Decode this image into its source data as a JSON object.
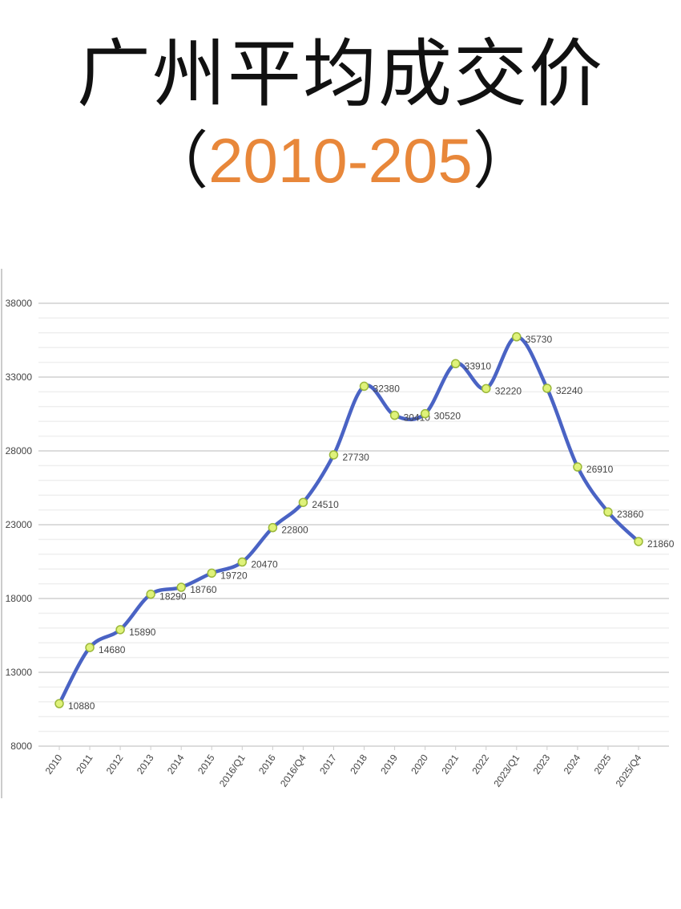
{
  "title": "广州平均成交价",
  "subtitle": {
    "open": "（",
    "range": "2010-205",
    "close": "）"
  },
  "colors": {
    "line": "#4a63c4",
    "marker_fill": "#dff27a",
    "marker_stroke": "#9bb83a",
    "subtitle_accent": "#e8873a",
    "grid": "#e4e4e4"
  },
  "chart_data": {
    "type": "line",
    "title": "",
    "xlabel": "",
    "ylabel": "",
    "ylim": [
      8000,
      38000
    ],
    "yticks": [
      8000,
      13000,
      18000,
      23000,
      28000,
      33000,
      38000
    ],
    "minor_grid_step": 1000,
    "grid": true,
    "smooth": true,
    "categories": [
      "2010",
      "2011",
      "2012",
      "2013",
      "2014",
      "2015",
      "2016/Q1",
      "2016",
      "2016/Q4",
      "2017",
      "2018",
      "2019",
      "2020",
      "2021",
      "2022",
      "2023/Q1",
      "2023",
      "2024",
      "2025",
      "2025/Q4"
    ],
    "values": [
      10880,
      14680,
      15890,
      18290,
      18760,
      19720,
      20470,
      22800,
      24510,
      27730,
      32380,
      30410,
      30520,
      33910,
      32220,
      35730,
      32240,
      26910,
      23860,
      21860
    ]
  }
}
